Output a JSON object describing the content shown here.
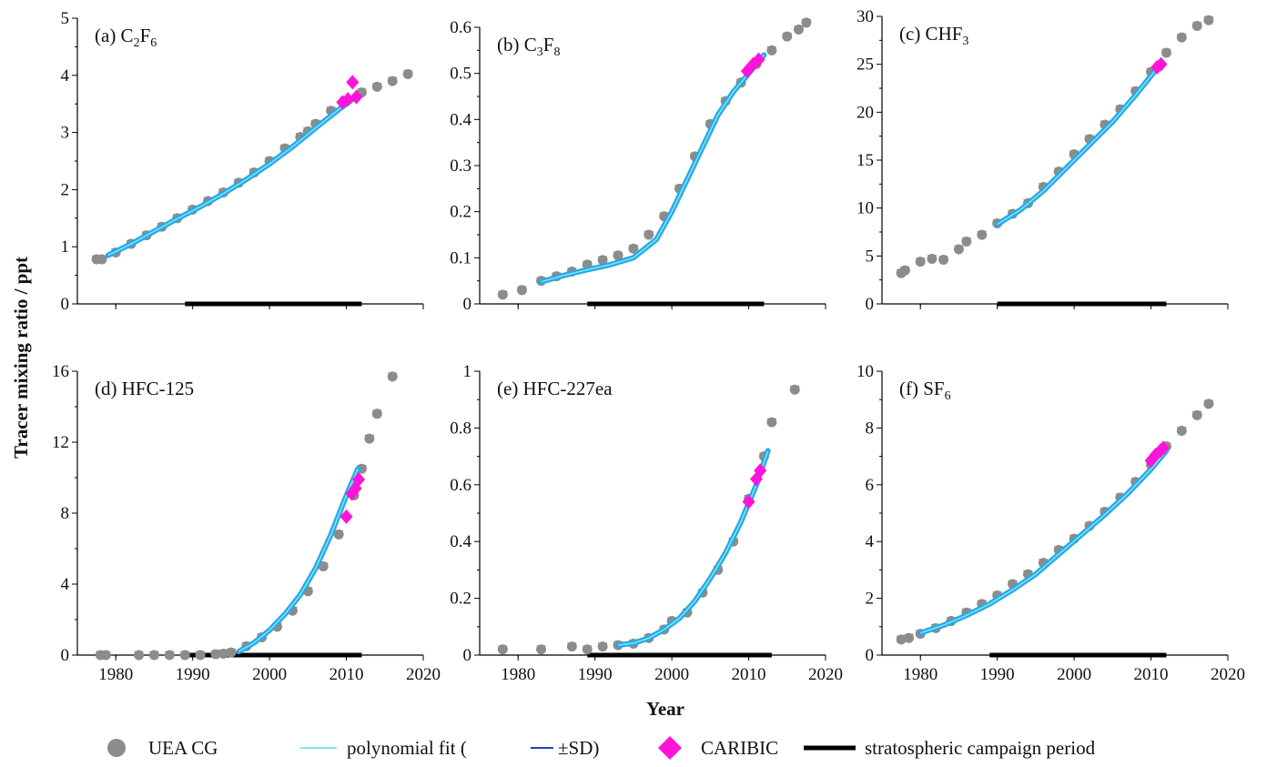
{
  "figure": {
    "ylabel": "Tracer mixing ratio / ppt",
    "xlabel": "Year",
    "legend": {
      "uea": "UEA CG",
      "fit": "polynomial fit (",
      "sd": "±SD)",
      "caribic": "CARIBIC",
      "campaign": "stratospheric campaign period"
    },
    "colors": {
      "uea": "#8c8c8c",
      "fit": "#7fe6f0",
      "band": "#29a8e8",
      "sd": "#1f3fc8",
      "caribic": "#ff14d8",
      "campaign": "#000000"
    }
  },
  "chart_data": [
    {
      "id": "a",
      "type": "scatter",
      "title_pre": "(a) C",
      "title_sub1": "2",
      "title_mid": "F",
      "title_sub2": "6",
      "xlim": [
        1975,
        2020
      ],
      "xticks": [
        1980,
        1990,
        2000,
        2010,
        2020
      ],
      "ylim": [
        0,
        5
      ],
      "yticks": [
        0,
        1,
        2,
        3,
        4,
        5
      ],
      "uea": {
        "x": [
          1977.5,
          1978.2,
          1980,
          1982,
          1984,
          1986,
          1988,
          1990,
          1992,
          1994,
          1996,
          1998,
          2000,
          2002,
          2004,
          2005,
          2006,
          2008,
          2010,
          2012,
          2014,
          2016,
          2018
        ],
        "y": [
          0.78,
          0.78,
          0.9,
          1.05,
          1.2,
          1.35,
          1.5,
          1.65,
          1.8,
          1.95,
          2.12,
          2.3,
          2.5,
          2.72,
          2.92,
          3.02,
          3.15,
          3.38,
          3.55,
          3.7,
          3.8,
          3.9,
          4.02
        ]
      },
      "fit": {
        "x": [
          1979,
          1982,
          1985,
          1988,
          1991,
          1994,
          1997,
          2000,
          2003,
          2006,
          2009,
          2011
        ],
        "y": [
          0.85,
          1.05,
          1.27,
          1.49,
          1.7,
          1.93,
          2.18,
          2.45,
          2.75,
          3.08,
          3.4,
          3.6
        ]
      },
      "caribic": {
        "x": [
          2009.5,
          2010.2,
          2010.8,
          2011.3
        ],
        "y": [
          3.53,
          3.58,
          3.88,
          3.62
        ]
      },
      "campaign": [
        1989,
        2012
      ]
    },
    {
      "id": "b",
      "type": "scatter",
      "title_pre": "(b) C",
      "title_sub1": "3",
      "title_mid": "F",
      "title_sub2": "8",
      "xlim": [
        1975,
        2020
      ],
      "xticks": [
        1980,
        1990,
        2000,
        2010,
        2020
      ],
      "ylim": [
        0,
        0.6
      ],
      "yticks": [
        0,
        0.1,
        0.2,
        0.3,
        0.4,
        0.5,
        0.6
      ],
      "uea": {
        "x": [
          1978,
          1980.5,
          1983,
          1985,
          1987,
          1989,
          1991,
          1993,
          1995,
          1997,
          1999,
          2001,
          2003,
          2005,
          2007,
          2009,
          2011,
          2013,
          2015,
          2016.5,
          2017.5
        ],
        "y": [
          0.02,
          0.03,
          0.05,
          0.06,
          0.07,
          0.085,
          0.095,
          0.105,
          0.12,
          0.15,
          0.19,
          0.25,
          0.32,
          0.39,
          0.44,
          0.48,
          0.52,
          0.55,
          0.58,
          0.595,
          0.61
        ]
      },
      "fit": {
        "x": [
          1983,
          1986,
          1989,
          1992,
          1995,
          1998,
          2000,
          2002,
          2004,
          2006,
          2008,
          2010,
          2012
        ],
        "y": [
          0.048,
          0.062,
          0.074,
          0.085,
          0.1,
          0.14,
          0.2,
          0.27,
          0.34,
          0.41,
          0.46,
          0.5,
          0.54
        ]
      },
      "caribic": {
        "x": [
          2009.8,
          2010.6,
          2011.3
        ],
        "y": [
          0.505,
          0.52,
          0.53
        ]
      },
      "campaign": [
        1989,
        2012
      ]
    },
    {
      "id": "c",
      "type": "scatter",
      "title_pre": "(c) CHF",
      "title_sub1": "3",
      "title_mid": "",
      "title_sub2": "",
      "xlim": [
        1975,
        2020
      ],
      "xticks": [
        1980,
        1990,
        2000,
        2010,
        2020
      ],
      "ylim": [
        0,
        30
      ],
      "yticks": [
        0,
        5,
        10,
        15,
        20,
        25,
        30
      ],
      "uea": {
        "x": [
          1977.5,
          1978,
          1980,
          1981.5,
          1983,
          1985,
          1986,
          1988,
          1990,
          1992,
          1994,
          1996,
          1998,
          2000,
          2002,
          2004,
          2006,
          2008,
          2010,
          2012,
          2014,
          2016,
          2017.5
        ],
        "y": [
          3.2,
          3.5,
          4.4,
          4.7,
          4.6,
          5.7,
          6.5,
          7.2,
          8.4,
          9.4,
          10.5,
          12.2,
          13.8,
          15.6,
          17.2,
          18.7,
          20.3,
          22.2,
          24.2,
          26.2,
          27.8,
          29.0,
          29.6
        ]
      },
      "fit": {
        "x": [
          1990,
          1993,
          1996,
          1999,
          2002,
          2005,
          2008,
          2011
        ],
        "y": [
          8.3,
          9.8,
          11.8,
          14.2,
          16.6,
          19.0,
          21.8,
          24.8
        ]
      },
      "caribic": {
        "x": [
          2010.8,
          2011.3
        ],
        "y": [
          24.7,
          25.0
        ]
      },
      "campaign": [
        1990,
        2012
      ]
    },
    {
      "id": "d",
      "type": "scatter",
      "title_pre": "(d) HFC-125",
      "title_sub1": "",
      "title_mid": "",
      "title_sub2": "",
      "xlim": [
        1975,
        2020
      ],
      "xticks": [
        1980,
        1990,
        2000,
        2010,
        2020
      ],
      "ylim": [
        0,
        16
      ],
      "yticks": [
        0,
        4,
        8,
        12,
        16
      ],
      "uea": {
        "x": [
          1978,
          1978.7,
          1983,
          1985,
          1987,
          1989,
          1991,
          1993,
          1994,
          1995,
          1997,
          1999,
          2001,
          2003,
          2005,
          2007,
          2009,
          2011,
          2012,
          2013,
          2014,
          2016
        ],
        "y": [
          0,
          0,
          0,
          0,
          0,
          0,
          0,
          0.05,
          0.08,
          0.15,
          0.5,
          1.0,
          1.6,
          2.5,
          3.6,
          5.0,
          6.8,
          9.0,
          10.5,
          12.2,
          13.6,
          15.7
        ]
      },
      "fit": {
        "x": [
          1996,
          1998,
          2000,
          2002,
          2004,
          2006,
          2008,
          2010,
          2011.5
        ],
        "y": [
          0.2,
          0.7,
          1.4,
          2.3,
          3.4,
          4.9,
          6.8,
          9.0,
          10.5
        ]
      },
      "caribic": {
        "x": [
          2010,
          2010.7,
          2011.2,
          2011.6
        ],
        "y": [
          7.8,
          9.1,
          9.4,
          9.9
        ]
      },
      "campaign": [
        1989,
        2012
      ]
    },
    {
      "id": "e",
      "type": "scatter",
      "title_pre": "(e) HFC-227ea",
      "title_sub1": "",
      "title_mid": "",
      "title_sub2": "",
      "xlim": [
        1975,
        2020
      ],
      "xticks": [
        1980,
        1990,
        2000,
        2010,
        2020
      ],
      "ylim": [
        0,
        1.0
      ],
      "yticks": [
        0,
        0.2,
        0.4,
        0.6,
        0.8,
        1.0
      ],
      "uea": {
        "x": [
          1978,
          1983,
          1987,
          1989,
          1991,
          1993,
          1995,
          1997,
          1999,
          2000,
          2002,
          2004,
          2006,
          2008,
          2010,
          2012,
          2013,
          2016
        ],
        "y": [
          0.02,
          0.02,
          0.03,
          0.02,
          0.03,
          0.035,
          0.04,
          0.06,
          0.09,
          0.12,
          0.15,
          0.22,
          0.3,
          0.4,
          0.55,
          0.7,
          0.82,
          0.935
        ]
      },
      "fit": {
        "x": [
          1993,
          1995,
          1997,
          1999,
          2001,
          2003,
          2005,
          2007,
          2009,
          2011,
          2012.5
        ],
        "y": [
          0.035,
          0.042,
          0.06,
          0.09,
          0.13,
          0.19,
          0.27,
          0.36,
          0.47,
          0.6,
          0.72
        ]
      },
      "caribic": {
        "x": [
          2010,
          2011,
          2011.5
        ],
        "y": [
          0.54,
          0.62,
          0.65
        ]
      },
      "campaign": [
        1989,
        2013
      ]
    },
    {
      "id": "f",
      "type": "scatter",
      "title_pre": "(f) SF",
      "title_sub1": "6",
      "title_mid": "",
      "title_sub2": "",
      "xlim": [
        1975,
        2020
      ],
      "xticks": [
        1980,
        1990,
        2000,
        2010,
        2020
      ],
      "ylim": [
        0,
        10
      ],
      "yticks": [
        0,
        2,
        4,
        6,
        8,
        10
      ],
      "uea": {
        "x": [
          1977.5,
          1978.5,
          1980,
          1982,
          1984,
          1986,
          1988,
          1990,
          1992,
          1994,
          1996,
          1998,
          2000,
          2002,
          2004,
          2006,
          2008,
          2010,
          2012,
          2014,
          2016,
          2017.5
        ],
        "y": [
          0.55,
          0.6,
          0.75,
          0.95,
          1.2,
          1.5,
          1.8,
          2.1,
          2.5,
          2.85,
          3.25,
          3.7,
          4.1,
          4.55,
          5.05,
          5.55,
          6.1,
          6.7,
          7.35,
          7.9,
          8.45,
          8.85
        ]
      },
      "fit": {
        "x": [
          1980,
          1983,
          1986,
          1989,
          1992,
          1995,
          1998,
          2001,
          2004,
          2007,
          2010,
          2012
        ],
        "y": [
          0.78,
          1.05,
          1.4,
          1.8,
          2.3,
          2.85,
          3.55,
          4.25,
          4.95,
          5.7,
          6.55,
          7.2
        ]
      },
      "caribic": {
        "x": [
          2010,
          2010.6,
          2011.2,
          2011.6
        ],
        "y": [
          6.85,
          7.05,
          7.2,
          7.3
        ]
      },
      "campaign": [
        1989,
        2012
      ]
    }
  ]
}
